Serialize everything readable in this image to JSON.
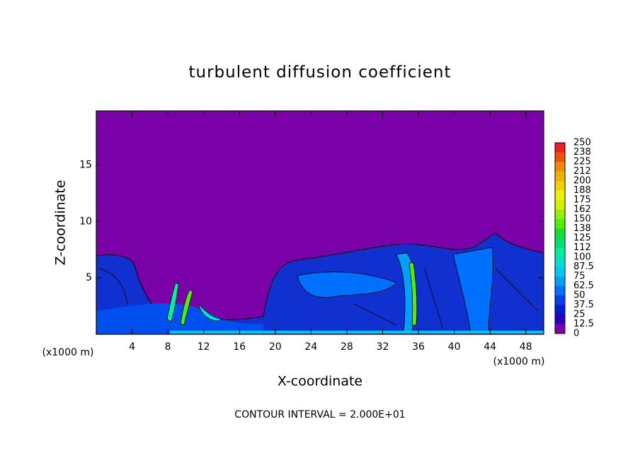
{
  "chart_data": {
    "type": "contour",
    "title": "turbulent diffusion coefficient",
    "xlabel": "X-coordinate",
    "ylabel": "Z-coordinate",
    "x_unit_label": "(x1000 m)",
    "y_unit_label": "(x1000 m)",
    "annotation": "CONTOUR INTERVAL = 2.000E+01",
    "xlim": [
      0,
      50
    ],
    "xticks": [
      4,
      8,
      12,
      16,
      20,
      24,
      28,
      32,
      36,
      40,
      44,
      48
    ],
    "ylim": [
      0,
      19.8
    ],
    "yticks": [
      5,
      10,
      15
    ],
    "colorbar": {
      "levels": [
        0,
        12.5,
        25,
        37.5,
        50,
        62.5,
        75,
        87.5,
        100,
        112,
        125,
        138,
        150,
        162,
        175,
        188,
        200,
        212,
        225,
        238,
        250
      ],
      "colors": [
        "#7a00a8",
        "#2a00c0",
        "#0018d8",
        "#0040f0",
        "#0070ff",
        "#00a0ff",
        "#00c8f0",
        "#00e0d0",
        "#00f0a0",
        "#00e070",
        "#10e030",
        "#50f000",
        "#90f000",
        "#d0f000",
        "#f0f000",
        "#f0d000",
        "#f0b000",
        "#f08800",
        "#f05000",
        "#f02020"
      ]
    }
  }
}
